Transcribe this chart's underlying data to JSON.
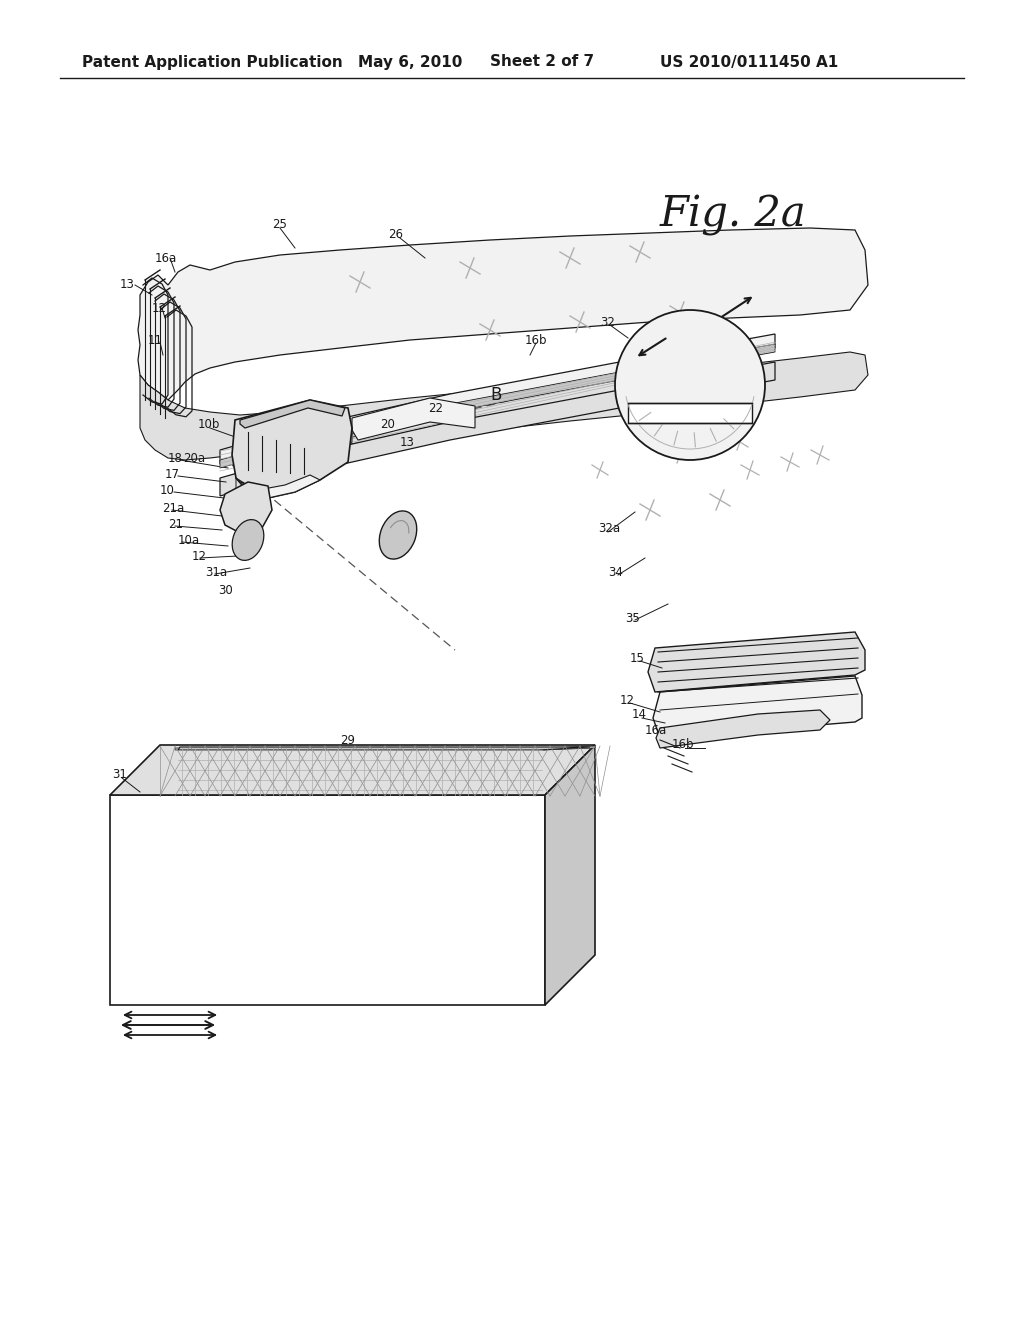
{
  "bg": "#ffffff",
  "lc": "#1a1a1a",
  "header1": "Patent Application Publication",
  "header2": "May 6, 2010",
  "header3": "Sheet 2 of 7",
  "header4": "US 2010/0111450 A1",
  "fig_label": "Fig. 2a",
  "gray1": "#f2f2f2",
  "gray2": "#e0e0e0",
  "gray3": "#c8c8c8",
  "gray4": "#b0b0b0",
  "gray5": "#909090"
}
